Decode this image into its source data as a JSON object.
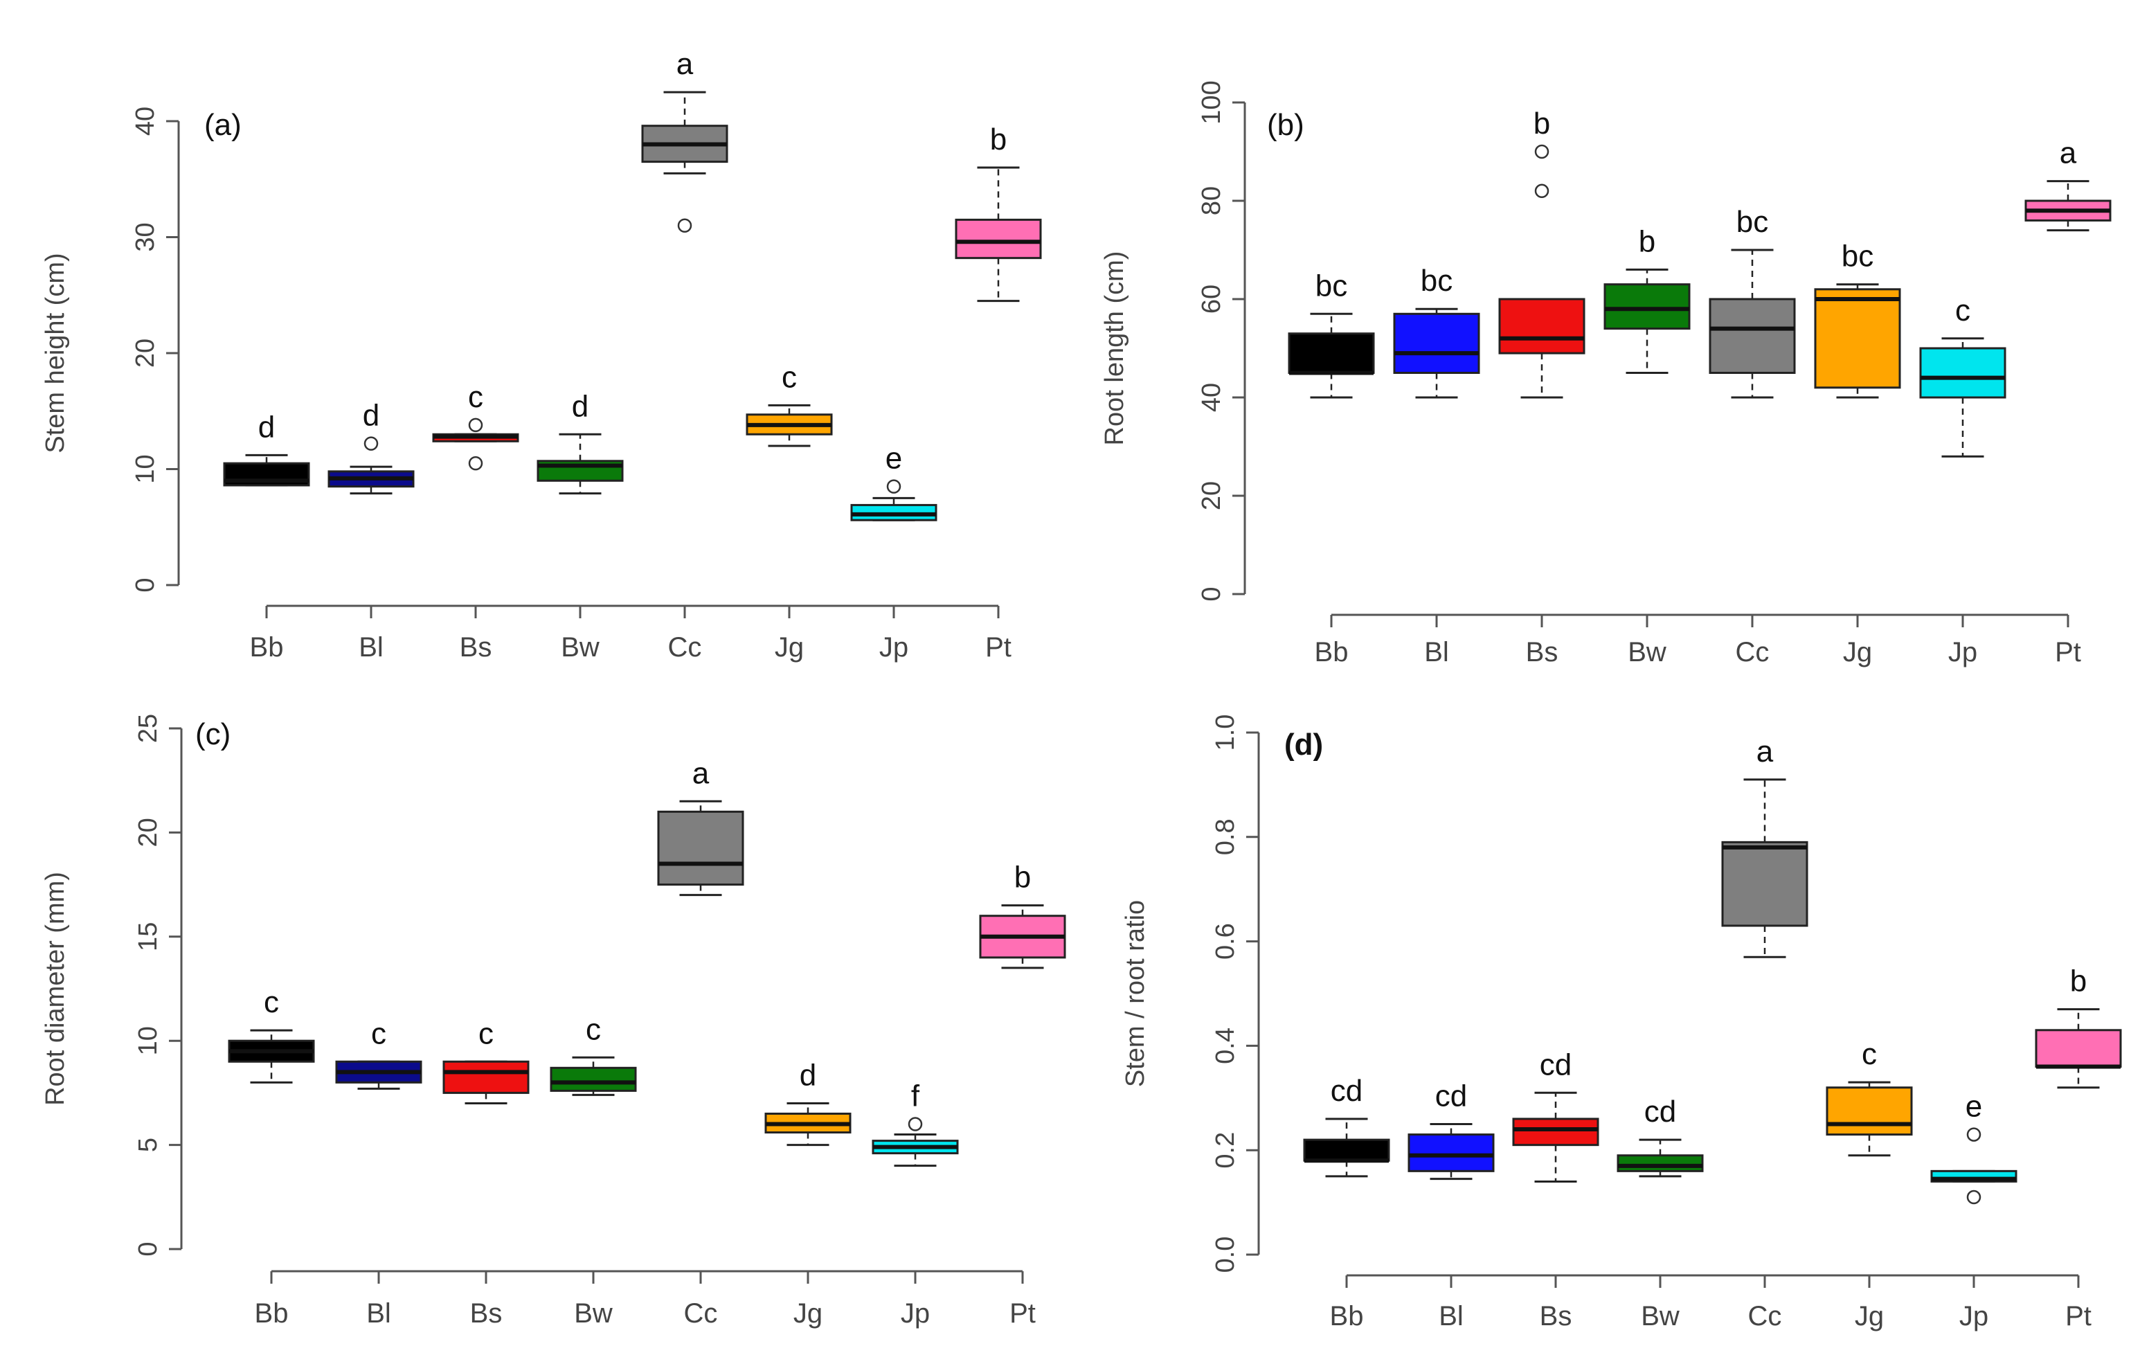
{
  "figure": {
    "categories": [
      "Bb",
      "Bl",
      "Bs",
      "Bw",
      "Cc",
      "Jg",
      "Jp",
      "Pt"
    ],
    "colors": {
      "Bb": "#000000",
      "Bl": "#0b0b8c",
      "Bs": "#ee1111",
      "Bw": "#0a7a0a",
      "Cc": "#7f7f7f",
      "Jg": "#ffa500",
      "Jp": "#00e5ee",
      "Pt": "#ff6fb4"
    },
    "panel_colors": {
      "a": {
        "Bl": "#0b0b8c"
      },
      "b": {
        "Bl": "#1111ff"
      },
      "c": {
        "Bl": "#0b0b8c"
      },
      "d": {
        "Bl": "#1111ff"
      }
    }
  },
  "chart_data": [
    {
      "id": "a",
      "panel_label": "(a)",
      "type": "box",
      "ylabel": "Stem height (cm)",
      "ylim": [
        0,
        40
      ],
      "yticks": [
        0,
        10,
        20,
        30,
        40
      ],
      "categories": [
        "Bb",
        "Bl",
        "Bs",
        "Bw",
        "Cc",
        "Jg",
        "Jp",
        "Pt"
      ],
      "boxes": [
        {
          "category": "Bb",
          "whisker_low": 8.6,
          "q1": 8.6,
          "median": 9.0,
          "q3": 10.5,
          "whisker_high": 11.2,
          "outliers": [],
          "letter": "d"
        },
        {
          "category": "Bl",
          "whisker_low": 7.9,
          "q1": 8.5,
          "median": 9.2,
          "q3": 9.8,
          "whisker_high": 10.2,
          "outliers": [
            12.2
          ],
          "letter": "d"
        },
        {
          "category": "Bs",
          "whisker_low": 12.4,
          "q1": 12.4,
          "median": 12.8,
          "q3": 13.0,
          "whisker_high": 13.0,
          "outliers": [
            13.8,
            10.5
          ],
          "letter": "c"
        },
        {
          "category": "Bw",
          "whisker_low": 7.9,
          "q1": 9.0,
          "median": 10.3,
          "q3": 10.7,
          "whisker_high": 13.0,
          "outliers": [],
          "letter": "d"
        },
        {
          "category": "Cc",
          "whisker_low": 35.5,
          "q1": 36.5,
          "median": 38.0,
          "q3": 39.6,
          "whisker_high": 42.5,
          "outliers": [
            31.0
          ],
          "letter": "a"
        },
        {
          "category": "Jg",
          "whisker_low": 12.0,
          "q1": 13.0,
          "median": 13.8,
          "q3": 14.7,
          "whisker_high": 15.5,
          "outliers": [],
          "letter": "c"
        },
        {
          "category": "Jp",
          "whisker_low": 5.6,
          "q1": 5.6,
          "median": 6.1,
          "q3": 6.9,
          "whisker_high": 7.5,
          "outliers": [
            8.5
          ],
          "letter": "e"
        },
        {
          "category": "Pt",
          "whisker_low": 24.5,
          "q1": 28.2,
          "median": 29.6,
          "q3": 31.5,
          "whisker_high": 36.0,
          "outliers": [],
          "letter": "b"
        }
      ]
    },
    {
      "id": "b",
      "panel_label": "(b)",
      "type": "box",
      "ylabel": "Root length (cm)",
      "ylim": [
        0,
        100
      ],
      "yticks": [
        0,
        20,
        40,
        60,
        80,
        100
      ],
      "categories": [
        "Bb",
        "Bl",
        "Bs",
        "Bw",
        "Cc",
        "Jg",
        "Jp",
        "Pt"
      ],
      "boxes": [
        {
          "category": "Bb",
          "whisker_low": 40,
          "q1": 45,
          "median": 45,
          "q3": 53,
          "whisker_high": 57,
          "outliers": [],
          "letter": "bc"
        },
        {
          "category": "Bl",
          "whisker_low": 40,
          "q1": 45,
          "median": 49,
          "q3": 57,
          "whisker_high": 58,
          "outliers": [],
          "letter": "bc"
        },
        {
          "category": "Bs",
          "whisker_low": 40,
          "q1": 49,
          "median": 52,
          "q3": 60,
          "whisker_high": 60,
          "outliers": [
            82,
            90
          ],
          "letter": "b"
        },
        {
          "category": "Bw",
          "whisker_low": 45,
          "q1": 54,
          "median": 58,
          "q3": 63,
          "whisker_high": 66,
          "outliers": [],
          "letter": "b"
        },
        {
          "category": "Cc",
          "whisker_low": 40,
          "q1": 45,
          "median": 54,
          "q3": 60,
          "whisker_high": 70,
          "outliers": [],
          "letter": "bc"
        },
        {
          "category": "Jg",
          "whisker_low": 40,
          "q1": 42,
          "median": 60,
          "q3": 62,
          "whisker_high": 63,
          "outliers": [],
          "letter": "bc"
        },
        {
          "category": "Jp",
          "whisker_low": 28,
          "q1": 40,
          "median": 44,
          "q3": 50,
          "whisker_high": 52,
          "outliers": [],
          "letter": "c"
        },
        {
          "category": "Pt",
          "whisker_low": 74,
          "q1": 76,
          "median": 78,
          "q3": 80,
          "whisker_high": 84,
          "outliers": [],
          "letter": "a"
        }
      ]
    },
    {
      "id": "c",
      "panel_label": "(c)",
      "type": "box",
      "ylabel": "Root diameter (mm)",
      "ylim": [
        0,
        25
      ],
      "yticks": [
        0,
        5,
        10,
        15,
        20,
        25
      ],
      "categories": [
        "Bb",
        "Bl",
        "Bs",
        "Bw",
        "Cc",
        "Jg",
        "Jp",
        "Pt"
      ],
      "boxes": [
        {
          "category": "Bb",
          "whisker_low": 8.0,
          "q1": 9.0,
          "median": 9.5,
          "q3": 10.0,
          "whisker_high": 10.5,
          "outliers": [],
          "letter": "c"
        },
        {
          "category": "Bl",
          "whisker_low": 7.7,
          "q1": 8.0,
          "median": 8.5,
          "q3": 9.0,
          "whisker_high": 9.0,
          "outliers": [],
          "letter": "c"
        },
        {
          "category": "Bs",
          "whisker_low": 7.0,
          "q1": 7.5,
          "median": 8.5,
          "q3": 9.0,
          "whisker_high": 9.0,
          "outliers": [],
          "letter": "c"
        },
        {
          "category": "Bw",
          "whisker_low": 7.4,
          "q1": 7.6,
          "median": 8.0,
          "q3": 8.7,
          "whisker_high": 9.2,
          "outliers": [],
          "letter": "c"
        },
        {
          "category": "Cc",
          "whisker_low": 17.0,
          "q1": 17.5,
          "median": 18.5,
          "q3": 21.0,
          "whisker_high": 21.5,
          "outliers": [],
          "letter": "a"
        },
        {
          "category": "Jg",
          "whisker_low": 5.0,
          "q1": 5.6,
          "median": 6.0,
          "q3": 6.5,
          "whisker_high": 7.0,
          "outliers": [],
          "letter": "d"
        },
        {
          "category": "Jp",
          "whisker_low": 4.0,
          "q1": 4.6,
          "median": 4.9,
          "q3": 5.2,
          "whisker_high": 5.5,
          "outliers": [
            6.0
          ],
          "letter": "f"
        },
        {
          "category": "Pt",
          "whisker_low": 13.5,
          "q1": 14.0,
          "median": 15.0,
          "q3": 16.0,
          "whisker_high": 16.5,
          "outliers": [],
          "letter": "b"
        }
      ]
    },
    {
      "id": "d",
      "panel_label": "(d)",
      "type": "box",
      "ylabel": "Stem / root ratio",
      "ylim": [
        0,
        1.0
      ],
      "yticks": [
        "0.0",
        "0.2",
        "0.4",
        "0.6",
        "0.8",
        "1.0"
      ],
      "categories": [
        "Bb",
        "Bl",
        "Bs",
        "Bw",
        "Cc",
        "Jg",
        "Jp",
        "Pt"
      ],
      "boxes": [
        {
          "category": "Bb",
          "whisker_low": 0.15,
          "q1": 0.18,
          "median": 0.18,
          "q3": 0.22,
          "whisker_high": 0.26,
          "outliers": [],
          "letter": "cd"
        },
        {
          "category": "Bl",
          "whisker_low": 0.145,
          "q1": 0.16,
          "median": 0.19,
          "q3": 0.23,
          "whisker_high": 0.25,
          "outliers": [],
          "letter": "cd"
        },
        {
          "category": "Bs",
          "whisker_low": 0.14,
          "q1": 0.21,
          "median": 0.24,
          "q3": 0.26,
          "whisker_high": 0.31,
          "outliers": [],
          "letter": "cd"
        },
        {
          "category": "Bw",
          "whisker_low": 0.15,
          "q1": 0.16,
          "median": 0.17,
          "q3": 0.19,
          "whisker_high": 0.22,
          "outliers": [],
          "letter": "cd"
        },
        {
          "category": "Cc",
          "whisker_low": 0.57,
          "q1": 0.63,
          "median": 0.78,
          "q3": 0.79,
          "whisker_high": 0.91,
          "outliers": [],
          "letter": "a"
        },
        {
          "category": "Jg",
          "whisker_low": 0.19,
          "q1": 0.23,
          "median": 0.25,
          "q3": 0.32,
          "whisker_high": 0.33,
          "outliers": [],
          "letter": "c"
        },
        {
          "category": "Jp",
          "whisker_low": 0.14,
          "q1": 0.14,
          "median": 0.145,
          "q3": 0.16,
          "whisker_high": 0.16,
          "outliers": [
            0.23,
            0.11
          ],
          "letter": "e"
        },
        {
          "category": "Pt",
          "whisker_low": 0.32,
          "q1": 0.36,
          "median": 0.36,
          "q3": 0.43,
          "whisker_high": 0.47,
          "outliers": [],
          "letter": "b"
        }
      ]
    }
  ]
}
